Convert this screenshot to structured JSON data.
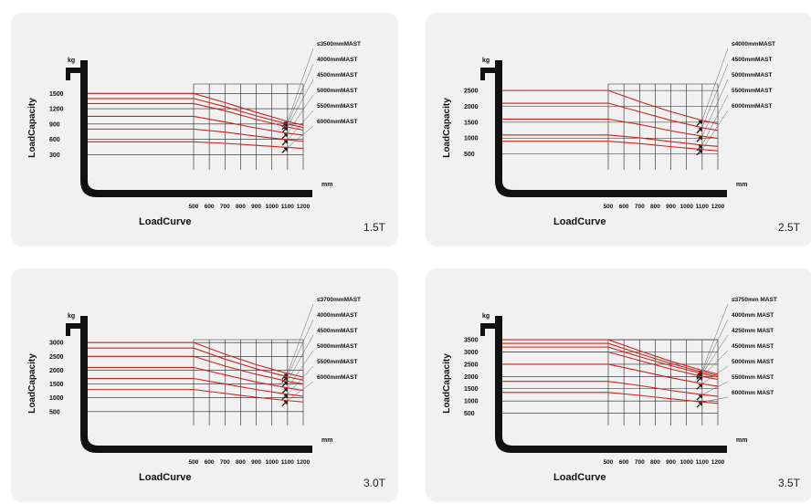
{
  "chart_data": [
    {
      "type": "line",
      "capacity_label": "1.5T",
      "xlabel": "LoadCurve",
      "ylabel": "LoadCapacity",
      "x_unit": "mm",
      "y_unit": "kg",
      "x_ticks": [
        "500",
        "600",
        "700",
        "800",
        "900",
        "1000",
        "1100",
        "1200"
      ],
      "y_ticks": [
        "1500",
        "1200",
        "900",
        "600",
        "300"
      ],
      "ylim": [
        0,
        1900
      ],
      "ybase": 200,
      "flat_x": 500,
      "xlim": [
        500,
        1200
      ],
      "series": [
        {
          "name": "≤3500mmMAST",
          "values": [
            [
              500,
              1500
            ],
            [
              700,
              1320
            ],
            [
              900,
              1130
            ],
            [
              1100,
              950
            ],
            [
              1200,
              880
            ]
          ]
        },
        {
          "name": "4000mmMAST",
          "values": [
            [
              500,
              1400
            ],
            [
              700,
              1240
            ],
            [
              900,
              1060
            ],
            [
              1100,
              900
            ],
            [
              1200,
              830
            ]
          ]
        },
        {
          "name": "4500mmMAST",
          "values": [
            [
              500,
              1300
            ],
            [
              700,
              1160
            ],
            [
              900,
              990
            ],
            [
              1100,
              840
            ],
            [
              1200,
              780
            ]
          ]
        },
        {
          "name": "5000mmMAST",
          "values": [
            [
              500,
              1050
            ],
            [
              700,
              940
            ],
            [
              900,
              820
            ],
            [
              1100,
              720
            ],
            [
              1200,
              680
            ]
          ]
        },
        {
          "name": "5500mmMAST",
          "values": [
            [
              500,
              800
            ],
            [
              700,
              740
            ],
            [
              900,
              660
            ],
            [
              1100,
              590
            ],
            [
              1200,
              560
            ]
          ]
        },
        {
          "name": "6000mmMAST",
          "values": [
            [
              500,
              550
            ],
            [
              700,
              520
            ],
            [
              900,
              480
            ],
            [
              1100,
              440
            ],
            [
              1200,
              420
            ]
          ]
        }
      ]
    },
    {
      "type": "line",
      "capacity_label": "2.5T",
      "xlabel": "LoadCurve",
      "ylabel": "LoadCapacity",
      "x_unit": "mm",
      "y_unit": "kg",
      "x_ticks": [
        "500",
        "600",
        "700",
        "800",
        "900",
        "1000",
        "1100",
        "1200"
      ],
      "y_ticks": [
        "2500",
        "2000",
        "1500",
        "1000",
        "500"
      ],
      "ylim": [
        0,
        3050
      ],
      "ybase": 300,
      "flat_x": 500,
      "xlim": [
        500,
        1200
      ],
      "series": [
        {
          "name": "≤4000mmMAST",
          "values": [
            [
              500,
              2500
            ],
            [
              700,
              2150
            ],
            [
              900,
              1830
            ],
            [
              1100,
              1560
            ],
            [
              1200,
              1450
            ]
          ]
        },
        {
          "name": "4500mmMAST",
          "values": [
            [
              500,
              2100
            ],
            [
              700,
              1830
            ],
            [
              900,
              1560
            ],
            [
              1100,
              1330
            ],
            [
              1200,
              1240
            ]
          ]
        },
        {
          "name": "5000mmMAST",
          "values": [
            [
              500,
              1600
            ],
            [
              700,
              1430
            ],
            [
              900,
              1230
            ],
            [
              1100,
              1060
            ],
            [
              1200,
              990
            ]
          ]
        },
        {
          "name": "5500mmMAST",
          "values": [
            [
              500,
              1100
            ],
            [
              700,
              1010
            ],
            [
              900,
              890
            ],
            [
              1100,
              780
            ],
            [
              1200,
              740
            ]
          ]
        },
        {
          "name": "6000mmMAST",
          "values": [
            [
              500,
              900
            ],
            [
              700,
              830
            ],
            [
              900,
              730
            ],
            [
              1100,
              640
            ],
            [
              1200,
              600
            ]
          ]
        }
      ]
    },
    {
      "type": "line",
      "capacity_label": "3.0T",
      "xlabel": "LoadCurve",
      "ylabel": "LoadCapacity",
      "x_unit": "mm",
      "y_unit": "kg",
      "x_ticks": [
        "500",
        "600",
        "700",
        "800",
        "900",
        "1000",
        "1100",
        "1200"
      ],
      "y_ticks": [
        "3000",
        "2500",
        "2000",
        "1500",
        "1000",
        "500"
      ],
      "ylim": [
        0,
        3500
      ],
      "ybase": 0,
      "flat_x": 500,
      "xlim": [
        500,
        1200
      ],
      "series": [
        {
          "name": "≤3700mmMAST",
          "values": [
            [
              500,
              3000
            ],
            [
              700,
              2580
            ],
            [
              900,
              2200
            ],
            [
              1100,
              1880
            ],
            [
              1200,
              1750
            ]
          ]
        },
        {
          "name": "4000mmMAST",
          "values": [
            [
              500,
              2800
            ],
            [
              700,
              2400
            ],
            [
              900,
              2050
            ],
            [
              1100,
              1760
            ],
            [
              1200,
              1640
            ]
          ]
        },
        {
          "name": "4500mmMAST",
          "values": [
            [
              500,
              2500
            ],
            [
              700,
              2150
            ],
            [
              900,
              1850
            ],
            [
              1100,
              1600
            ],
            [
              1200,
              1500
            ]
          ]
        },
        {
          "name": "5000mmMAST",
          "values": [
            [
              500,
              2100
            ],
            [
              700,
              1830
            ],
            [
              900,
              1570
            ],
            [
              1100,
              1360
            ],
            [
              1200,
              1270
            ]
          ]
        },
        {
          "name": "5500mmMAST",
          "values": [
            [
              500,
              1700
            ],
            [
              700,
              1500
            ],
            [
              900,
              1300
            ],
            [
              1100,
              1130
            ],
            [
              1200,
              1060
            ]
          ]
        },
        {
          "name": "6000mmMAST",
          "values": [
            [
              500,
              1300
            ],
            [
              700,
              1160
            ],
            [
              900,
              1020
            ],
            [
              1100,
              900
            ],
            [
              1200,
              850
            ]
          ]
        }
      ]
    },
    {
      "type": "line",
      "capacity_label": "3.5T",
      "xlabel": "LoadCurve",
      "ylabel": "LoadCapacity",
      "x_unit": "mm",
      "y_unit": "kg",
      "x_ticks": [
        "500",
        "600",
        "700",
        "800",
        "900",
        "1000",
        "1100",
        "1200"
      ],
      "y_ticks": [
        "3500",
        "3000",
        "2500",
        "2000",
        "1500",
        "1000",
        "500"
      ],
      "ylim": [
        0,
        3950
      ],
      "ybase": 150,
      "flat_x": 500,
      "xlim": [
        500,
        1200
      ],
      "series": [
        {
          "name": "≤3750mm MAST",
          "values": [
            [
              500,
              3500
            ],
            [
              700,
              3050
            ],
            [
              900,
              2620
            ],
            [
              1100,
              2250
            ],
            [
              1200,
              2100
            ]
          ]
        },
        {
          "name": "4000mm MAST",
          "values": [
            [
              500,
              3350
            ],
            [
              700,
              2930
            ],
            [
              900,
              2530
            ],
            [
              1100,
              2180
            ],
            [
              1200,
              2040
            ]
          ]
        },
        {
          "name": "4250mm MAST",
          "values": [
            [
              500,
              3200
            ],
            [
              700,
              2810
            ],
            [
              900,
              2440
            ],
            [
              1100,
              2110
            ],
            [
              1200,
              1980
            ]
          ]
        },
        {
          "name": "4500mm MAST",
          "values": [
            [
              500,
              3000
            ],
            [
              700,
              2650
            ],
            [
              900,
              2300
            ],
            [
              1100,
              2000
            ],
            [
              1200,
              1880
            ]
          ]
        },
        {
          "name": "5000mm MAST",
          "values": [
            [
              500,
              2500
            ],
            [
              700,
              2230
            ],
            [
              900,
              1950
            ],
            [
              1100,
              1700
            ],
            [
              1200,
              1600
            ]
          ]
        },
        {
          "name": "5500mm MAST",
          "values": [
            [
              500,
              1800
            ],
            [
              700,
              1630
            ],
            [
              900,
              1430
            ],
            [
              1100,
              1260
            ],
            [
              1200,
              1190
            ]
          ]
        },
        {
          "name": "6000mm MAST",
          "values": [
            [
              500,
              1350
            ],
            [
              700,
              1230
            ],
            [
              900,
              1090
            ],
            [
              1100,
              960
            ],
            [
              1200,
              900
            ]
          ]
        }
      ]
    }
  ],
  "colors": {
    "curve": "#d0221c",
    "grid": "#222222",
    "frame": "#111111",
    "card": "#f1f1f1",
    "leader": "#666666"
  }
}
